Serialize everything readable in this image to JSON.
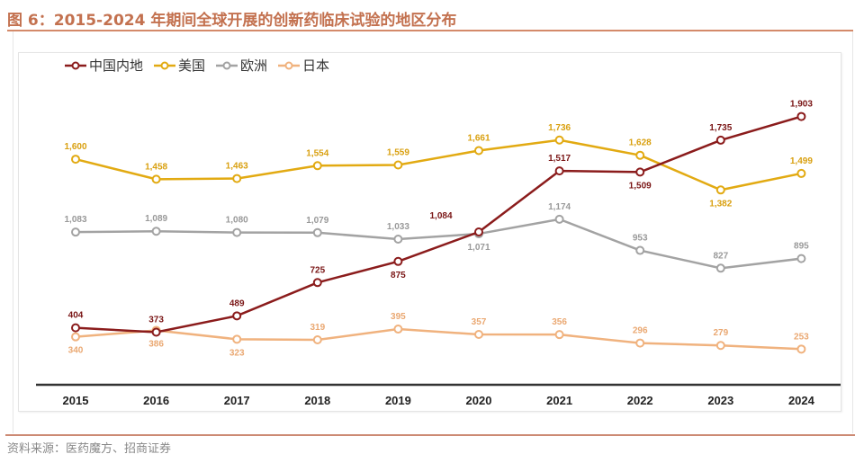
{
  "title": "图 6：2015-2024 年期间全球开展的创新药临床试验的地区分布",
  "source": "资料来源：医药魔方、招商证券",
  "chart_data": {
    "type": "line",
    "title": "",
    "xlabel": "",
    "ylabel": "",
    "categories": [
      "2015",
      "2016",
      "2017",
      "2018",
      "2019",
      "2020",
      "2021",
      "2022",
      "2023",
      "2024"
    ],
    "ylim": [
      0,
      2200
    ],
    "grid": false,
    "y_axis_visible": false,
    "legend_position": "top-left",
    "markers": "hollow-circle",
    "series": [
      {
        "name": "中国内地",
        "color": "#8b1c1c",
        "values": [
          404,
          373,
          489,
          725,
          875,
          1084,
          1517,
          1509,
          1735,
          1903
        ]
      },
      {
        "name": "美国",
        "color": "#e2aa12",
        "values": [
          1600,
          1458,
          1463,
          1554,
          1559,
          1661,
          1736,
          1628,
          1382,
          1499
        ]
      },
      {
        "name": "欧洲",
        "color": "#a3a3a3",
        "values": [
          1083,
          1089,
          1080,
          1079,
          1033,
          1071,
          1174,
          953,
          827,
          895
        ]
      },
      {
        "name": "日本",
        "color": "#f0b27e",
        "values": [
          340,
          386,
          323,
          319,
          395,
          357,
          356,
          296,
          279,
          253
        ]
      }
    ]
  }
}
